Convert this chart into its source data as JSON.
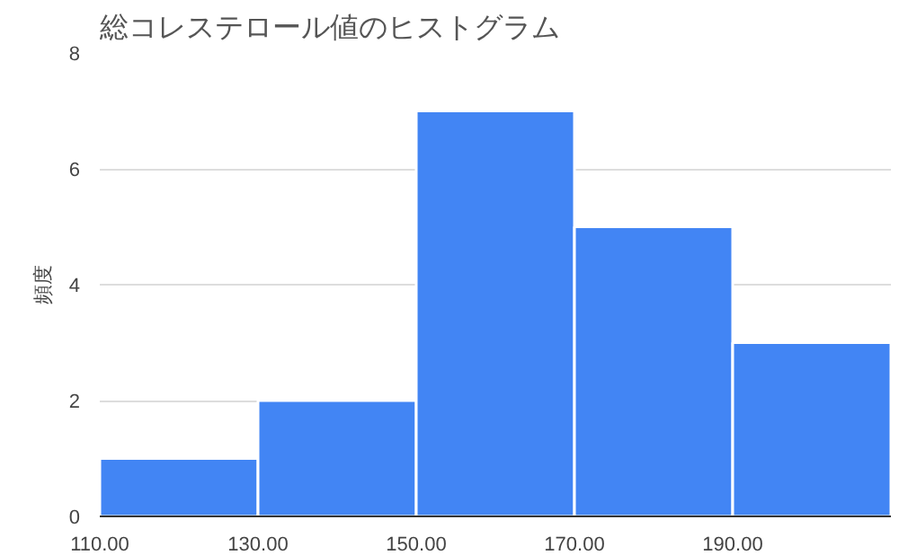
{
  "chart_data": {
    "type": "histogram",
    "title": "総コレステロール値のヒストグラム",
    "ylabel": "頻度",
    "bins": [
      110,
      130,
      150,
      170,
      190,
      210
    ],
    "values": [
      1,
      2,
      7,
      5,
      3
    ],
    "color": "#4285f4",
    "xlim": [
      110,
      210
    ],
    "xticks": [
      {
        "value": 110,
        "label": "110.00"
      },
      {
        "value": 130,
        "label": "130.00"
      },
      {
        "value": 150,
        "label": "150.00"
      },
      {
        "value": 170,
        "label": "170.00"
      },
      {
        "value": 190,
        "label": "190.00"
      }
    ],
    "ylim": [
      0,
      8
    ],
    "yticks": [
      0,
      2,
      4,
      6,
      8
    ],
    "grid": "y"
  }
}
